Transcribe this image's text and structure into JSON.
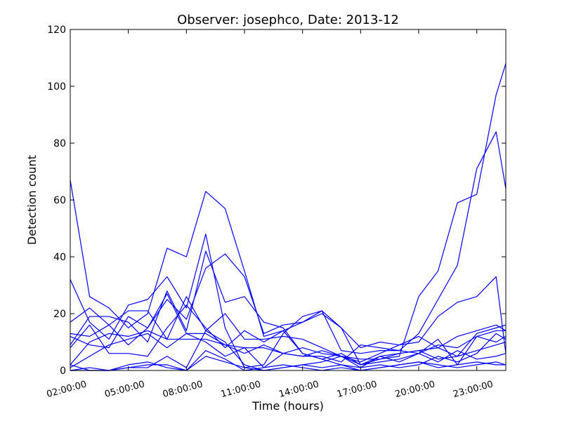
{
  "chart_data": {
    "type": "line",
    "title": "Observer: josephco, Date: 2013-12",
    "xlabel": "Time (hours)",
    "ylabel": "Detection count",
    "xlim": [
      2,
      24.5
    ],
    "ylim": [
      0,
      120
    ],
    "x_ticks": [
      2,
      5,
      8,
      11,
      14,
      17,
      20,
      23
    ],
    "x_tick_labels": [
      "02:00:00",
      "05:00:00",
      "08:00:00",
      "11:00:00",
      "14:00:00",
      "17:00:00",
      "20:00:00",
      "23:00:00"
    ],
    "y_ticks": [
      0,
      20,
      40,
      60,
      80,
      100,
      120
    ],
    "y_tick_labels": [
      "0",
      "20",
      "40",
      "60",
      "80",
      "100",
      "120"
    ],
    "grid": false,
    "legend": "none",
    "line_color": "#0000ff",
    "x": [
      2,
      3,
      4,
      5,
      6,
      7,
      8,
      9,
      10,
      11,
      12,
      13,
      14,
      15,
      16,
      17,
      18,
      19,
      20,
      21,
      22,
      23,
      24,
      24.5
    ],
    "series": [
      {
        "values": [
          67,
          26,
          22,
          15,
          20,
          43,
          40,
          63,
          57,
          35,
          12,
          14,
          17,
          21,
          15,
          2,
          4,
          5,
          26,
          35,
          59,
          62,
          97,
          108
        ]
      },
      {
        "values": [
          32,
          17,
          11,
          23,
          25,
          33,
          22,
          48,
          15,
          1,
          2,
          13,
          19,
          21,
          7,
          6,
          7,
          7,
          13,
          25,
          37,
          71,
          84,
          64
        ]
      },
      {
        "values": [
          17,
          22,
          16,
          21,
          21,
          11,
          26,
          14,
          20,
          11,
          11,
          12,
          11,
          8,
          5,
          3,
          6,
          9,
          10,
          19,
          24,
          26,
          33,
          6
        ]
      },
      {
        "values": [
          12,
          9,
          8,
          19,
          15,
          25,
          18,
          36,
          41,
          33,
          13,
          16,
          17,
          20,
          15,
          8,
          10,
          9,
          12,
          8,
          12,
          14,
          16,
          14
        ]
      },
      {
        "values": [
          9,
          19,
          19,
          17,
          10,
          28,
          14,
          42,
          24,
          26,
          17,
          15,
          6,
          4,
          2,
          1,
          5,
          6,
          7,
          8,
          5,
          13,
          15,
          16
        ]
      },
      {
        "values": [
          13,
          12,
          16,
          9,
          15,
          27,
          13,
          13,
          9,
          6,
          9,
          6,
          5,
          5,
          3,
          9,
          8,
          7,
          6,
          11,
          2,
          12,
          14,
          14
        ]
      },
      {
        "values": [
          8,
          16,
          6,
          6,
          5,
          15,
          23,
          15,
          8,
          14,
          10,
          14,
          6,
          4,
          6,
          2,
          5,
          3,
          6,
          9,
          8,
          12,
          10,
          12
        ]
      },
      {
        "values": [
          2,
          10,
          13,
          12,
          14,
          11,
          11,
          11,
          9,
          8,
          8,
          6,
          5,
          7,
          5,
          4,
          4,
          6,
          7,
          4,
          5,
          7,
          9,
          10
        ]
      },
      {
        "values": [
          1,
          5,
          9,
          11,
          13,
          8,
          13,
          10,
          5,
          8,
          1,
          6,
          8,
          6,
          5,
          2,
          3,
          4,
          6,
          3,
          7,
          4,
          5,
          6
        ]
      },
      {
        "values": [
          0,
          1,
          0,
          1,
          2,
          2,
          0,
          7,
          4,
          0,
          1,
          2,
          1,
          0,
          1,
          0,
          1,
          2,
          3,
          1,
          2,
          3,
          2,
          2
        ]
      },
      {
        "values": [
          2,
          0,
          0,
          1,
          1,
          5,
          1,
          14,
          10,
          2,
          0,
          1,
          2,
          3,
          5,
          1,
          2,
          1,
          2,
          5,
          3,
          6,
          13,
          11
        ]
      },
      {
        "values": [
          0,
          0,
          0,
          2,
          3,
          1,
          0,
          5,
          3,
          1,
          0,
          1,
          2,
          1,
          2,
          0,
          1,
          2,
          3,
          2,
          1,
          2,
          3,
          2
        ]
      }
    ]
  }
}
